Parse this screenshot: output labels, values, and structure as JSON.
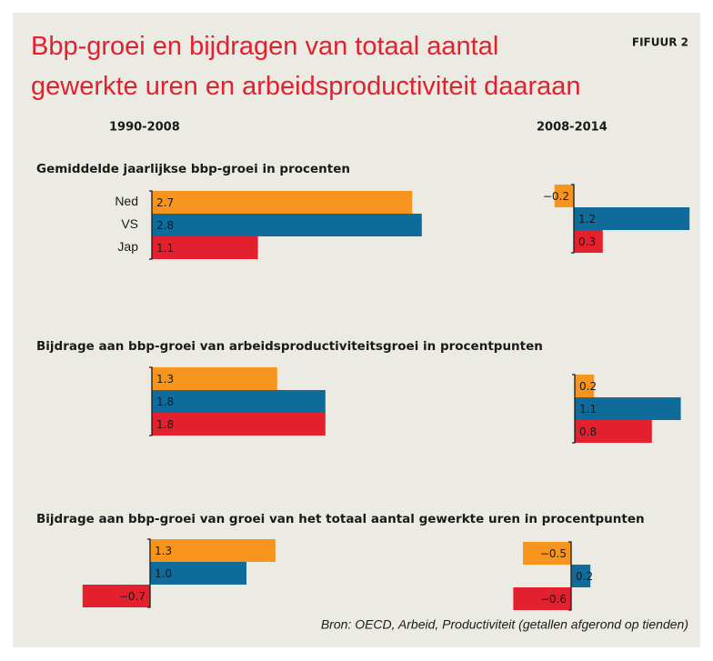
{
  "title_lines": [
    "Bbp-groei en bijdragen van totaal aantal",
    "gewerkte uren en arbeidsproductiviteit daaraan"
  ],
  "figure_label": "FIFUUR 2",
  "periods": [
    "1990-2008",
    "2008-2014"
  ],
  "source": "Bron: OECD, Arbeid, Productiviteit (getallen afgerond op tienden)",
  "chart_data": [
    {
      "type": "bar",
      "orientation": "horizontal",
      "title": "Gemiddelde jaarlijkse bbp-groei in procenten",
      "categories": [
        "Ned",
        "VS",
        "Jap"
      ],
      "values": [
        2.7,
        2.8,
        1.1
      ],
      "colors": [
        "#f7941d",
        "#0f6b9a",
        "#e3202e"
      ]
    },
    {
      "type": "bar",
      "orientation": "horizontal",
      "categories": [
        null,
        null,
        null
      ],
      "values": [
        -0.2,
        1.2,
        0.3
      ],
      "value_labels": [
        "−0.2",
        "1.2",
        "0.3"
      ],
      "colors": [
        "#f7941d",
        "#0f6b9a",
        "#e3202e"
      ]
    },
    {
      "type": "bar",
      "orientation": "horizontal",
      "title": "Bijdrage aan bbp-groei van arbeidsproductiviteitsgroei in procentpunten",
      "categories": [
        null,
        null,
        null
      ],
      "values": [
        1.3,
        1.8,
        1.8
      ],
      "colors": [
        "#f7941d",
        "#0f6b9a",
        "#e3202e"
      ]
    },
    {
      "type": "bar",
      "orientation": "horizontal",
      "categories": [
        null,
        null,
        null
      ],
      "values": [
        0.2,
        1.1,
        0.8
      ],
      "colors": [
        "#f7941d",
        "#0f6b9a",
        "#e3202e"
      ]
    },
    {
      "type": "bar",
      "orientation": "horizontal",
      "title": "Bijdrage aan bbp-groei van groei van het totaal aantal gewerkte uren in procentpunten",
      "categories": [
        null,
        null,
        null
      ],
      "values": [
        1.3,
        1.0,
        -0.7
      ],
      "value_labels": [
        "1.3",
        "1.0",
        "−0.7"
      ],
      "colors": [
        "#f7941d",
        "#0f6b9a",
        "#e3202e"
      ]
    },
    {
      "type": "bar",
      "orientation": "horizontal",
      "categories": [
        null,
        null,
        null
      ],
      "values": [
        -0.5,
        0.2,
        -0.6
      ],
      "value_labels": [
        "−0.5",
        "0.2",
        "−0.6"
      ],
      "colors": [
        "#f7941d",
        "#0f6b9a",
        "#e3202e"
      ]
    }
  ]
}
